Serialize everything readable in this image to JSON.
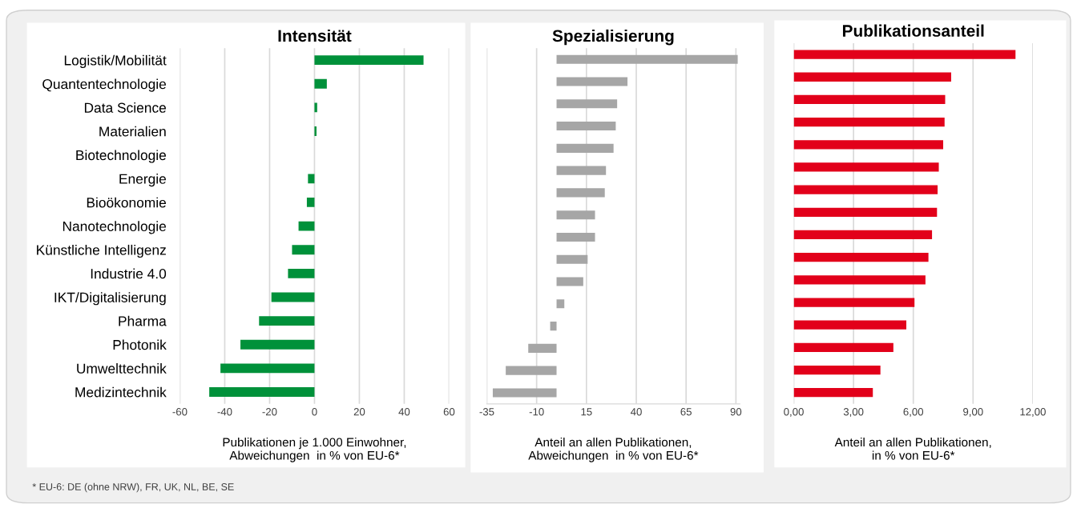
{
  "chart_data": [
    {
      "type": "bar",
      "orientation": "horizontal",
      "title": "Intensität",
      "xlabel": "Publikationen je 1.000 Einwohner,\nAbweichungen  in % von EU-6*",
      "categories": [
        "Logistik/Mobilität",
        "Quantentechnologie",
        "Data Science",
        "Materialien",
        "Biotechnologie",
        "Energie",
        "Bioökonomie",
        "Nanotechnologie",
        "Künstliche Intelligenz",
        "Industrie 4.0",
        "IKT/Digitalisierung",
        "Pharma",
        "Photonik",
        "Umwelttechnik",
        "Medizintechnik"
      ],
      "values": [
        48.6,
        5.5,
        1.2,
        0.9,
        0,
        -2.9,
        -3.4,
        -7.1,
        -10,
        -11.8,
        -19.2,
        -24.7,
        -33,
        -41.9,
        -46.9
      ],
      "color": "#00913a",
      "xlim": [
        -60,
        60
      ],
      "xticks": [
        -60,
        -40,
        -20,
        0,
        20,
        40,
        60
      ],
      "grid": "x",
      "annotations": [
        "* EU-6: DE (ohne NRW), FR, UK, NL, BE, SE"
      ]
    },
    {
      "type": "bar",
      "orientation": "horizontal",
      "title": "Spezialisierung",
      "xlabel": "Anteil an allen Publikationen,\nAbweichungen  in % von EU-6*",
      "categories": [
        null,
        null,
        null,
        null,
        null,
        null,
        null,
        null,
        null,
        null,
        null,
        null,
        null,
        null,
        null,
        null
      ],
      "values": [
        90.9,
        35.6,
        30.4,
        29.7,
        28.6,
        24.8,
        24.2,
        19.3,
        19.3,
        15.6,
        13.4,
        3.9,
        -3.2,
        -14.2,
        -25.5,
        -32.0
      ],
      "color": "#a6a6a6",
      "xlim": [
        -35,
        92
      ],
      "xticks": [
        -35,
        -10,
        15,
        40,
        65,
        90
      ],
      "grid": "x"
    },
    {
      "type": "bar",
      "orientation": "horizontal",
      "title": "Publikationsanteil",
      "xlabel": "Anteil an allen Publikationen,\nin % von EU-6*",
      "categories": [
        null,
        null,
        null,
        null,
        null,
        null,
        null,
        null,
        null,
        null,
        null,
        null,
        null,
        null,
        null,
        null
      ],
      "values": [
        11.13,
        7.9,
        7.6,
        7.57,
        7.5,
        7.28,
        7.22,
        7.19,
        6.94,
        6.76,
        6.61,
        6.06,
        5.65,
        5.0,
        4.35,
        3.97
      ],
      "color": "#e2001a",
      "xlim": [
        0,
        12
      ],
      "xticks": [
        {
          "value": 0,
          "label": "0,00"
        },
        {
          "value": 3,
          "label": "3,00"
        },
        {
          "value": 6,
          "label": "6,00"
        },
        {
          "value": 9,
          "label": "9,00"
        },
        {
          "value": 12,
          "label": "12,00"
        }
      ],
      "grid": "x"
    }
  ]
}
